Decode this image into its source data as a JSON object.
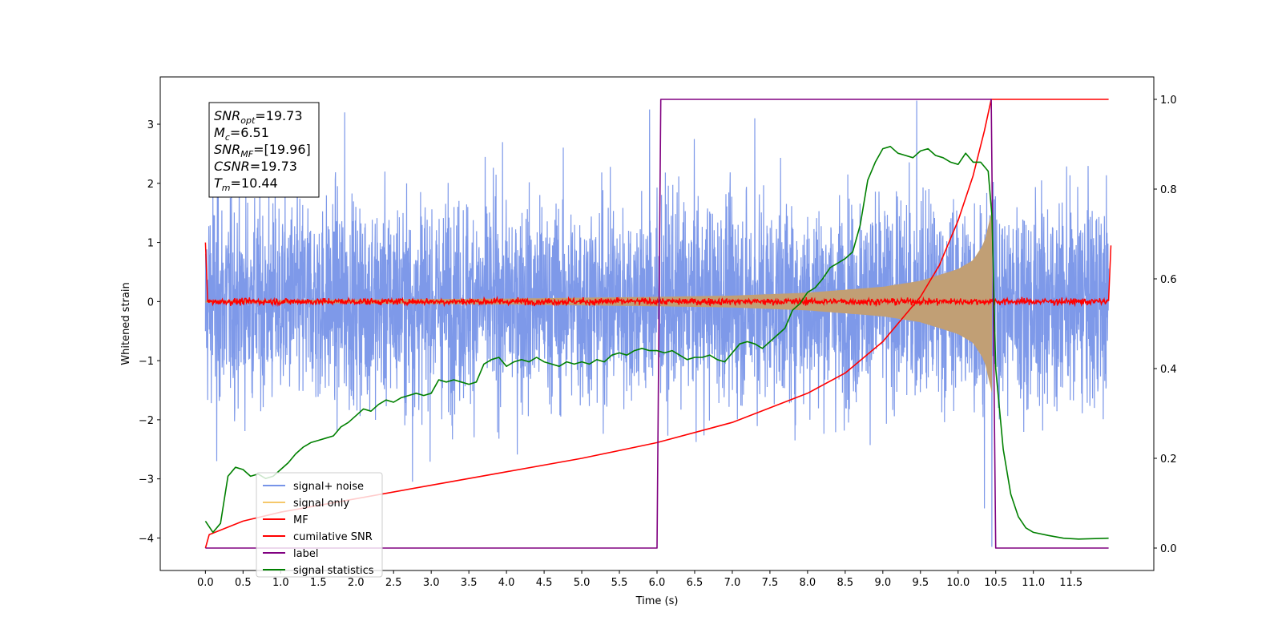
{
  "chart_data": {
    "type": "line",
    "title": "",
    "xlabel": "Time (s)",
    "ylabel": "Whitened strain",
    "xlim": [
      -0.6,
      12.6
    ],
    "ylim": [
      -4.55,
      3.8
    ],
    "y2lim": [
      -0.05,
      1.05
    ],
    "x_ticks": [
      0.0,
      0.5,
      1.0,
      1.5,
      2.0,
      2.5,
      3.0,
      3.5,
      4.0,
      4.5,
      5.0,
      5.5,
      6.0,
      6.5,
      7.0,
      7.5,
      8.0,
      8.5,
      9.0,
      9.5,
      10.0,
      10.5,
      11.0,
      11.5
    ],
    "x_tick_labels": [
      "0.0",
      "0.5",
      "1.0",
      "1.5",
      "2.0",
      "2.5",
      "3.0",
      "3.5",
      "4.0",
      "4.5",
      "5.0",
      "5.5",
      "6.0",
      "6.5",
      "7.0",
      "7.5",
      "8.0",
      "8.5",
      "9.0",
      "9.5",
      "10.0",
      "10.5",
      "11.0",
      "11.5"
    ],
    "y_ticks": [
      3,
      2,
      1,
      0,
      -1,
      -2,
      -3,
      -4
    ],
    "y_tick_labels": [
      "3",
      "2",
      "1",
      "0",
      "−1",
      "−2",
      "−3",
      "−4"
    ],
    "y2_ticks": [
      1.0,
      0.8,
      0.6,
      0.4,
      0.2,
      0.0
    ],
    "y2_tick_labels": [
      "1.0",
      "0.8",
      "0.6",
      "0.4",
      "0.2",
      "0.0"
    ],
    "grid": false,
    "legend_position": "lower-left",
    "series": [
      {
        "name": "signal+ noise",
        "color": "#7794e8",
        "axis": "left",
        "description_values": {
          "t_start": 0.0,
          "t_end": 12.0,
          "noise_std": 0.9,
          "typical_max": 2.5,
          "typical_min": -2.5
        },
        "extrema": [
          [
            0.1,
            1.9
          ],
          [
            0.15,
            -2.7
          ],
          [
            1.85,
            3.2
          ],
          [
            2.75,
            -3.05
          ],
          [
            5.9,
            3.25
          ],
          [
            7.3,
            3.1
          ],
          [
            9.45,
            3.4
          ],
          [
            10.35,
            -3.5
          ],
          [
            10.45,
            3.4
          ],
          [
            10.45,
            -4.15
          ]
        ]
      },
      {
        "name": "signal only",
        "color": "#f5c86b",
        "axis": "left",
        "envelope": [
          [
            0.0,
            0.02
          ],
          [
            4.0,
            0.05
          ],
          [
            6.0,
            0.08
          ],
          [
            7.0,
            0.1
          ],
          [
            8.0,
            0.15
          ],
          [
            9.0,
            0.25
          ],
          [
            9.5,
            0.35
          ],
          [
            10.0,
            0.55
          ],
          [
            10.2,
            0.7
          ],
          [
            10.35,
            1.0
          ],
          [
            10.45,
            1.55
          ]
        ]
      },
      {
        "name": "MF",
        "color": "#ff0000",
        "axis": "left",
        "points": [
          [
            0.0,
            1.0
          ],
          [
            0.03,
            0.0
          ],
          [
            12.0,
            0.0
          ],
          [
            12.03,
            0.95
          ]
        ],
        "noise_amplitude": 0.08
      },
      {
        "name": "cumilative SNR",
        "color": "#ff0000",
        "axis": "right",
        "points": [
          [
            0.0,
            0.0
          ],
          [
            0.05,
            0.03
          ],
          [
            0.5,
            0.06
          ],
          [
            1.0,
            0.08
          ],
          [
            2.0,
            0.11
          ],
          [
            3.0,
            0.14
          ],
          [
            4.0,
            0.17
          ],
          [
            5.0,
            0.2
          ],
          [
            6.0,
            0.235
          ],
          [
            7.0,
            0.28
          ],
          [
            8.0,
            0.345
          ],
          [
            8.5,
            0.39
          ],
          [
            9.0,
            0.46
          ],
          [
            9.5,
            0.56
          ],
          [
            9.75,
            0.63
          ],
          [
            10.0,
            0.73
          ],
          [
            10.2,
            0.83
          ],
          [
            10.35,
            0.93
          ],
          [
            10.44,
            1.0
          ],
          [
            12.0,
            1.0
          ]
        ]
      },
      {
        "name": "label",
        "color": "#800080",
        "axis": "right",
        "points": [
          [
            0.0,
            0.0
          ],
          [
            6.0,
            0.0
          ],
          [
            6.05,
            1.0
          ],
          [
            10.44,
            1.0
          ],
          [
            10.5,
            0.0
          ],
          [
            12.0,
            0.0
          ]
        ]
      },
      {
        "name": "signal statistics",
        "color": "#008000",
        "axis": "right",
        "points": [
          [
            0.0,
            0.06
          ],
          [
            0.1,
            0.035
          ],
          [
            0.2,
            0.055
          ],
          [
            0.3,
            0.16
          ],
          [
            0.4,
            0.18
          ],
          [
            0.5,
            0.175
          ],
          [
            0.6,
            0.16
          ],
          [
            0.7,
            0.165
          ],
          [
            0.8,
            0.155
          ],
          [
            0.9,
            0.16
          ],
          [
            1.0,
            0.175
          ],
          [
            1.1,
            0.19
          ],
          [
            1.2,
            0.21
          ],
          [
            1.3,
            0.225
          ],
          [
            1.4,
            0.235
          ],
          [
            1.5,
            0.24
          ],
          [
            1.6,
            0.245
          ],
          [
            1.7,
            0.25
          ],
          [
            1.8,
            0.27
          ],
          [
            1.9,
            0.28
          ],
          [
            2.0,
            0.295
          ],
          [
            2.1,
            0.31
          ],
          [
            2.2,
            0.305
          ],
          [
            2.3,
            0.32
          ],
          [
            2.4,
            0.33
          ],
          [
            2.5,
            0.325
          ],
          [
            2.6,
            0.335
          ],
          [
            2.7,
            0.34
          ],
          [
            2.8,
            0.345
          ],
          [
            2.9,
            0.34
          ],
          [
            3.0,
            0.345
          ],
          [
            3.1,
            0.375
          ],
          [
            3.2,
            0.37
          ],
          [
            3.3,
            0.375
          ],
          [
            3.4,
            0.37
          ],
          [
            3.5,
            0.365
          ],
          [
            3.6,
            0.37
          ],
          [
            3.7,
            0.41
          ],
          [
            3.8,
            0.42
          ],
          [
            3.9,
            0.425
          ],
          [
            4.0,
            0.405
          ],
          [
            4.1,
            0.415
          ],
          [
            4.2,
            0.42
          ],
          [
            4.3,
            0.415
          ],
          [
            4.4,
            0.425
          ],
          [
            4.5,
            0.415
          ],
          [
            4.6,
            0.41
          ],
          [
            4.7,
            0.405
          ],
          [
            4.8,
            0.415
          ],
          [
            4.9,
            0.41
          ],
          [
            5.0,
            0.415
          ],
          [
            5.1,
            0.41
          ],
          [
            5.2,
            0.42
          ],
          [
            5.3,
            0.415
          ],
          [
            5.4,
            0.43
          ],
          [
            5.5,
            0.435
          ],
          [
            5.6,
            0.43
          ],
          [
            5.7,
            0.44
          ],
          [
            5.8,
            0.445
          ],
          [
            5.9,
            0.44
          ],
          [
            6.0,
            0.44
          ],
          [
            6.1,
            0.435
          ],
          [
            6.2,
            0.44
          ],
          [
            6.3,
            0.43
          ],
          [
            6.4,
            0.42
          ],
          [
            6.5,
            0.425
          ],
          [
            6.6,
            0.425
          ],
          [
            6.7,
            0.43
          ],
          [
            6.8,
            0.42
          ],
          [
            6.9,
            0.415
          ],
          [
            7.0,
            0.435
          ],
          [
            7.1,
            0.455
          ],
          [
            7.2,
            0.46
          ],
          [
            7.3,
            0.455
          ],
          [
            7.4,
            0.445
          ],
          [
            7.5,
            0.46
          ],
          [
            7.6,
            0.475
          ],
          [
            7.7,
            0.49
          ],
          [
            7.8,
            0.53
          ],
          [
            7.9,
            0.545
          ],
          [
            8.0,
            0.57
          ],
          [
            8.1,
            0.58
          ],
          [
            8.2,
            0.6
          ],
          [
            8.3,
            0.625
          ],
          [
            8.4,
            0.635
          ],
          [
            8.5,
            0.645
          ],
          [
            8.6,
            0.66
          ],
          [
            8.7,
            0.72
          ],
          [
            8.8,
            0.82
          ],
          [
            8.9,
            0.86
          ],
          [
            9.0,
            0.89
          ],
          [
            9.1,
            0.895
          ],
          [
            9.2,
            0.88
          ],
          [
            9.3,
            0.875
          ],
          [
            9.4,
            0.87
          ],
          [
            9.5,
            0.885
          ],
          [
            9.6,
            0.89
          ],
          [
            9.7,
            0.875
          ],
          [
            9.8,
            0.87
          ],
          [
            9.9,
            0.86
          ],
          [
            10.0,
            0.855
          ],
          [
            10.1,
            0.88
          ],
          [
            10.2,
            0.86
          ],
          [
            10.3,
            0.86
          ],
          [
            10.4,
            0.84
          ],
          [
            10.45,
            0.74
          ],
          [
            10.5,
            0.4
          ],
          [
            10.6,
            0.22
          ],
          [
            10.7,
            0.12
          ],
          [
            10.8,
            0.07
          ],
          [
            10.9,
            0.045
          ],
          [
            11.0,
            0.035
          ],
          [
            11.2,
            0.028
          ],
          [
            11.4,
            0.022
          ],
          [
            11.6,
            0.02
          ],
          [
            12.0,
            0.022
          ]
        ]
      }
    ],
    "annotation_lines": [
      {
        "label": "SNR",
        "sub": "opt",
        "value": "=19.73"
      },
      {
        "label": "M",
        "sub": "c",
        "value": "=6.51"
      },
      {
        "label": "SNR",
        "sub": "MF",
        "value": "=[19.96]"
      },
      {
        "label": "CSNR",
        "sub": "",
        "value": "=19.73"
      },
      {
        "label": "T",
        "sub": "m",
        "value": "=10.44"
      }
    ]
  }
}
